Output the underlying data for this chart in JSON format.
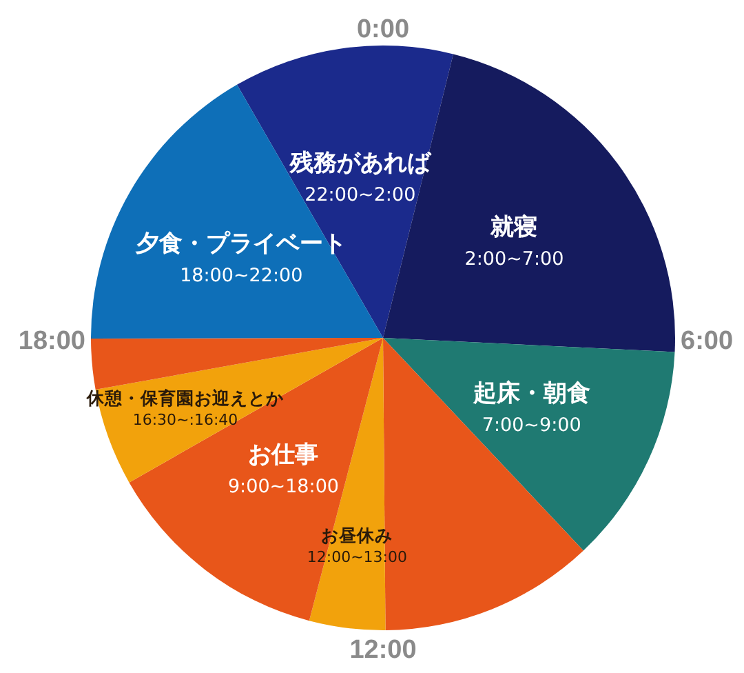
{
  "chart_data": {
    "type": "pie",
    "categories": [
      "残務があれば",
      "就寝",
      "起床・朝食",
      null,
      "お昼休み",
      "お仕事",
      "休憩・保育園お迎えとか",
      null,
      "夕食・プライベート"
    ],
    "values": [
      12.2,
      21.9,
      12.2,
      11.9,
      4.2,
      12.7,
      5.4,
      2.8,
      16.7
    ],
    "value_labels": [
      "22:00~2:00",
      "2:00~7:00",
      "7:00~9:00",
      null,
      "12:00~13:00",
      "9:00~18:00",
      "16:30~:16:40",
      null,
      "18:00~22:00"
    ],
    "colors": [
      "#1b2a8c",
      "#151b5e",
      "#1f7a72",
      "#e8561a",
      "#f2a20c",
      "#e8561a",
      "#f2a20c",
      "#e8561a",
      "#0e6fb8"
    ],
    "annotations": [
      "0:00",
      "6:00",
      "12:00",
      "18:00"
    ]
  }
}
